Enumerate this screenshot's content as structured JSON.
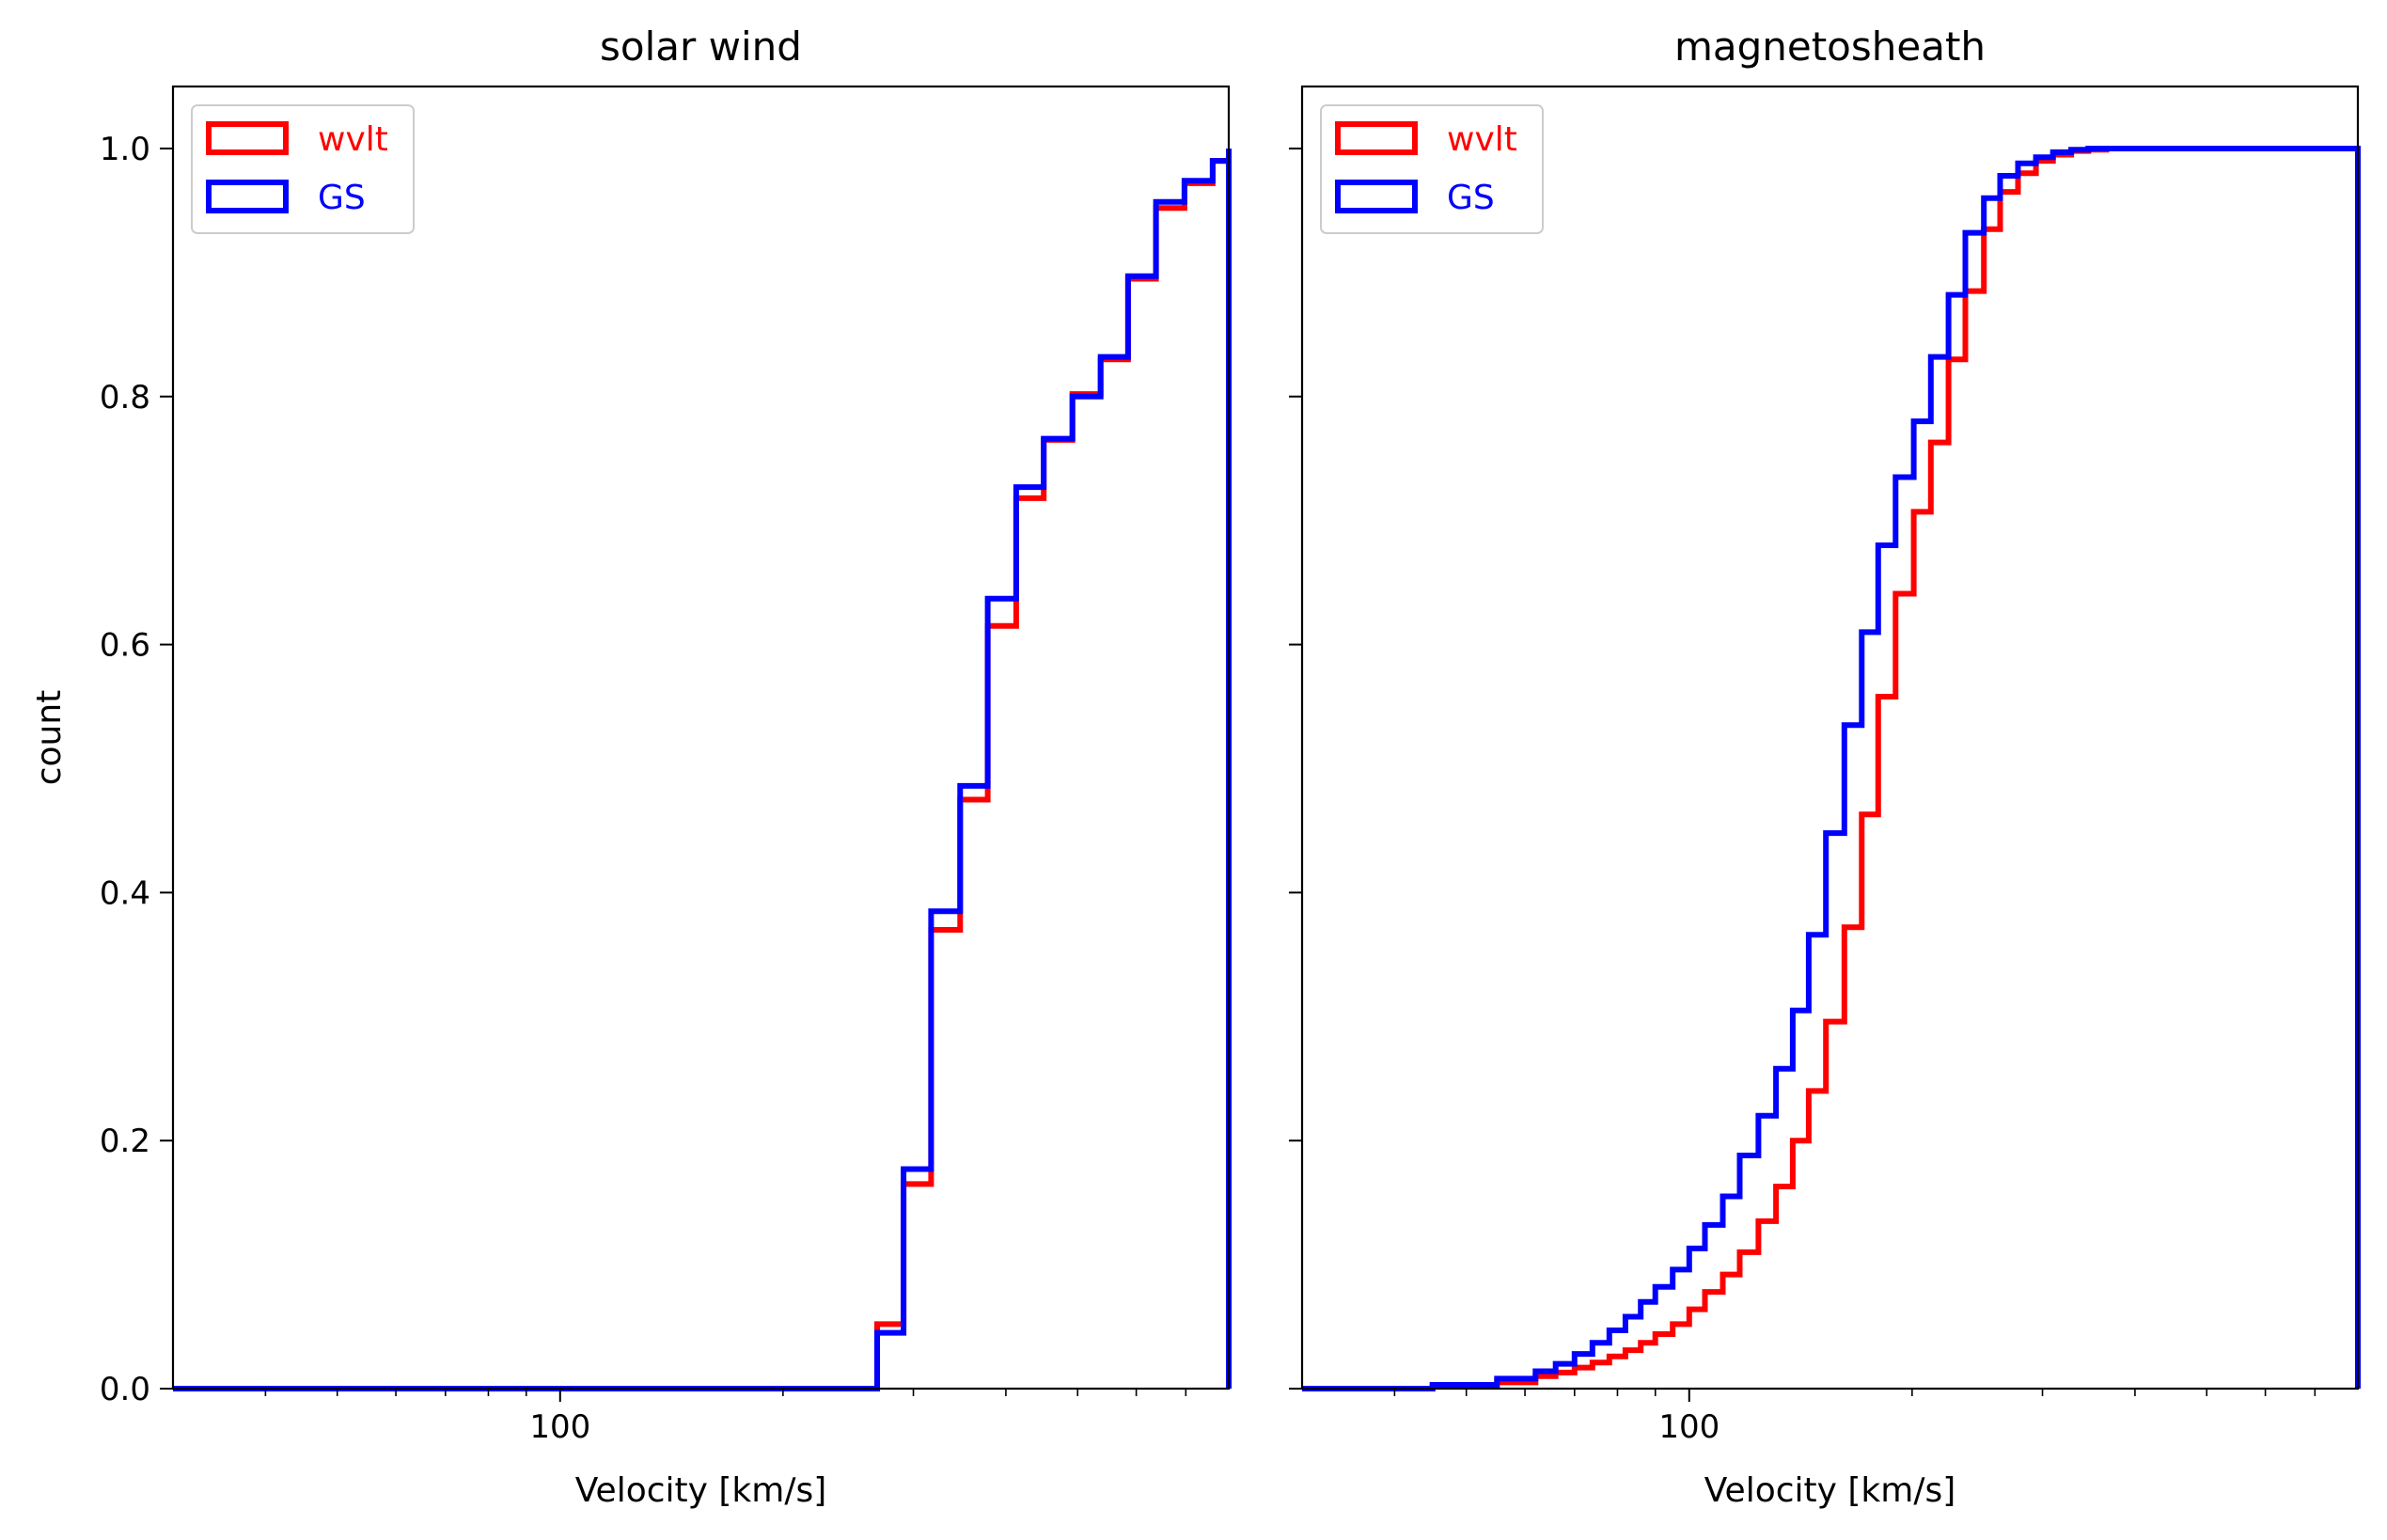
{
  "chart_data": [
    {
      "type": "line",
      "title": "solar wind",
      "xlabel": "Velocity [km/s]",
      "ylabel": "count",
      "x_scale": "log",
      "xlim": [
        30,
        800
      ],
      "ylim": [
        0,
        1.05
      ],
      "xticks": [
        {
          "value": 100,
          "label": "100"
        }
      ],
      "yticks": [
        {
          "value": 0.0,
          "label": "0.0"
        },
        {
          "value": 0.2,
          "label": "0.2"
        },
        {
          "value": 0.4,
          "label": "0.4"
        },
        {
          "value": 0.6,
          "label": "0.6"
        },
        {
          "value": 0.8,
          "label": "0.8"
        },
        {
          "value": 1.0,
          "label": "1.0"
        }
      ],
      "legend_position": "top-left",
      "series": [
        {
          "name": "wvlt",
          "color": "#ff0000",
          "x": [
            30,
            268,
            291,
            317,
            347,
            378,
            413,
            450,
            492,
            537,
            585,
            638,
            697,
            761,
            800
          ],
          "y": [
            0,
            0.052,
            0.165,
            0.37,
            0.475,
            0.615,
            0.718,
            0.765,
            0.802,
            0.83,
            0.895,
            0.952,
            0.972,
            0.99,
            1.0
          ]
        },
        {
          "name": "GS",
          "color": "#0000ff",
          "x": [
            30,
            268,
            291,
            317,
            347,
            378,
            413,
            450,
            492,
            537,
            585,
            638,
            697,
            761,
            800
          ],
          "y": [
            0,
            0.045,
            0.177,
            0.385,
            0.486,
            0.637,
            0.727,
            0.766,
            0.8,
            0.832,
            0.897,
            0.957,
            0.974,
            0.99,
            1.0
          ]
        }
      ]
    },
    {
      "type": "line",
      "title": "magnetosheath",
      "xlabel": "Velocity [km/s]",
      "ylabel": "",
      "x_scale": "log",
      "xlim": [
        30,
        800
      ],
      "ylim": [
        0,
        1.05
      ],
      "xticks": [
        {
          "value": 100,
          "label": "100"
        }
      ],
      "yticks": [
        {
          "value": 0.0,
          "label": ""
        },
        {
          "value": 0.2,
          "label": ""
        },
        {
          "value": 0.4,
          "label": ""
        },
        {
          "value": 0.6,
          "label": ""
        },
        {
          "value": 0.8,
          "label": ""
        },
        {
          "value": 1.0,
          "label": ""
        }
      ],
      "legend_position": "top-left",
      "series": [
        {
          "name": "wvlt",
          "color": "#ff0000",
          "x": [
            30,
            45,
            55,
            62,
            66,
            70,
            74,
            78,
            82,
            86,
            90,
            95,
            100,
            105,
            111,
            117,
            124,
            131,
            138,
            145,
            153,
            162,
            171,
            180,
            190,
            201,
            212,
            224,
            236,
            250,
            263,
            278,
            294,
            310,
            328,
            346,
            366,
            386,
            408,
            430,
            455,
            480,
            520,
            600,
            800
          ],
          "y": [
            0,
            0.002,
            0.005,
            0.01,
            0.013,
            0.017,
            0.021,
            0.026,
            0.031,
            0.037,
            0.044,
            0.052,
            0.064,
            0.078,
            0.092,
            0.11,
            0.135,
            0.163,
            0.2,
            0.24,
            0.296,
            0.372,
            0.463,
            0.558,
            0.641,
            0.707,
            0.763,
            0.83,
            0.885,
            0.935,
            0.965,
            0.98,
            0.99,
            0.995,
            0.998,
            0.999,
            1.0,
            1.0,
            1.0,
            1.0,
            1.0,
            1.0,
            1.0,
            1.0,
            1.0
          ]
        },
        {
          "name": "GS",
          "color": "#0000ff",
          "x": [
            30,
            45,
            55,
            62,
            66,
            70,
            74,
            78,
            82,
            86,
            90,
            95,
            100,
            105,
            111,
            117,
            124,
            131,
            138,
            145,
            153,
            162,
            171,
            180,
            190,
            201,
            212,
            224,
            236,
            250,
            263,
            278,
            294,
            310,
            328,
            346,
            366,
            386,
            408,
            430,
            455,
            480,
            520,
            600,
            800
          ],
          "y": [
            0,
            0.003,
            0.008,
            0.014,
            0.02,
            0.028,
            0.037,
            0.047,
            0.058,
            0.07,
            0.082,
            0.096,
            0.113,
            0.132,
            0.155,
            0.188,
            0.22,
            0.258,
            0.305,
            0.366,
            0.448,
            0.535,
            0.61,
            0.68,
            0.735,
            0.78,
            0.832,
            0.882,
            0.932,
            0.96,
            0.978,
            0.988,
            0.993,
            0.997,
            0.999,
            1.0,
            1.0,
            1.0,
            1.0,
            1.0,
            1.0,
            1.0,
            1.0,
            1.0,
            1.0
          ]
        }
      ]
    }
  ]
}
